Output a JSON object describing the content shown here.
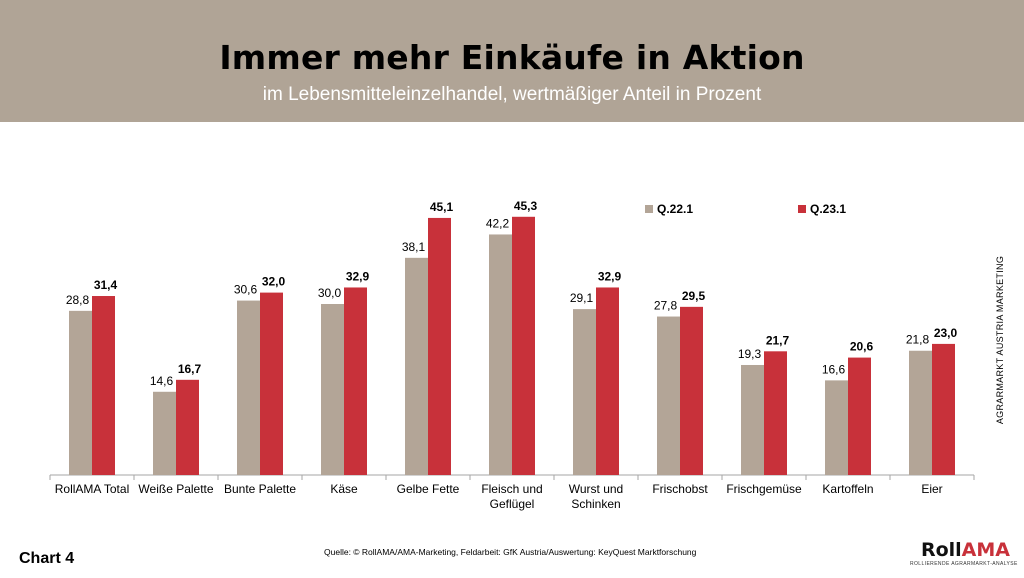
{
  "header": {
    "title": "Immer mehr Einkäufe in Aktion",
    "subtitle": "im Lebensmitteleinzelhandel, wertmäßiger Anteil in Prozent"
  },
  "chart_data": {
    "type": "bar",
    "title": "Immer mehr Einkäufe in Aktion",
    "subtitle": "im Lebensmitteleinzelhandel, wertmäßiger Anteil in Prozent",
    "xlabel": "",
    "ylabel": "",
    "ylim": [
      0,
      50
    ],
    "grid": false,
    "legend_position": "top-right",
    "categories": [
      [
        "RollAMA Total"
      ],
      [
        "Weiße Palette"
      ],
      [
        "Bunte Palette"
      ],
      [
        "Käse"
      ],
      [
        "Gelbe Fette"
      ],
      [
        "Fleisch und",
        "Geflügel"
      ],
      [
        "Wurst und",
        "Schinken"
      ],
      [
        "Frischobst"
      ],
      [
        "Frischgemüse"
      ],
      [
        "Kartoffeln"
      ],
      [
        "Eier"
      ]
    ],
    "series": [
      {
        "name": "Q.22.1",
        "color": "#b3a597",
        "values": [
          28.8,
          14.6,
          30.6,
          30.0,
          38.1,
          42.2,
          29.1,
          27.8,
          19.3,
          16.6,
          21.8
        ],
        "labels": [
          "28,8",
          "14,6",
          "30,6",
          "30,0",
          "38,1",
          "42,2",
          "29,1",
          "27,8",
          "19,3",
          "16,6",
          "21,8"
        ]
      },
      {
        "name": "Q.23.1",
        "color": "#c8313a",
        "values": [
          31.4,
          16.7,
          32.0,
          32.9,
          45.1,
          45.3,
          32.9,
          29.5,
          21.7,
          20.6,
          23.0
        ],
        "labels": [
          "31,4",
          "16,7",
          "32,0",
          "32,9",
          "45,1",
          "45,3",
          "32,9",
          "29,5",
          "21,7",
          "20,6",
          "23,0"
        ]
      }
    ]
  },
  "side_label": "AGRARMARKT AUSTRIA MARKETING",
  "footer": {
    "chart_number": "Chart 4",
    "source": "Quelle: © RollAMA/AMA-Marketing, Feldarbeit: GfK Austria/Auswertung: KeyQuest Marktforschung",
    "logo_roll": "Roll",
    "logo_ama": "AMA",
    "logo_tagline": "ROLLIERENDE AGRARMARKT-ANALYSE"
  }
}
